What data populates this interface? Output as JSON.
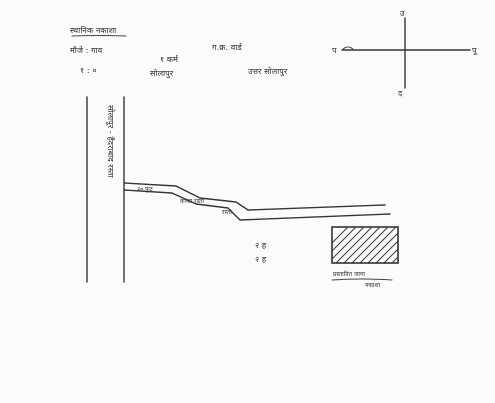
{
  "header": {
    "line1_left": "स्थानिक नकाशा",
    "line2_left": "मौजे : गाव",
    "line2_right": "ग.क्र. वार्ड",
    "line3_left": "१ : ०",
    "line3_mid": "१ कर्म",
    "line3_mid2": "सोलापुर",
    "line3_right": "उत्तर सोलापुर"
  },
  "compass": {
    "north": "उ",
    "south": "द",
    "west": "प",
    "east": "पू"
  },
  "labels": {
    "road_vertical": "सोलापूर - हैदराबाद रस्ता",
    "lane_1": "२० फूट",
    "lane_2": "कच्चा रस्ता",
    "lane_3": "रस्ता",
    "mark_1": "२ ह",
    "mark_2": "२ ह",
    "plot_caption_1": "प्रस्तावित जागा",
    "plot_caption_2": "नकाशा"
  },
  "colors": {
    "ink": "#363636",
    "paper": "#fbfbfb"
  }
}
